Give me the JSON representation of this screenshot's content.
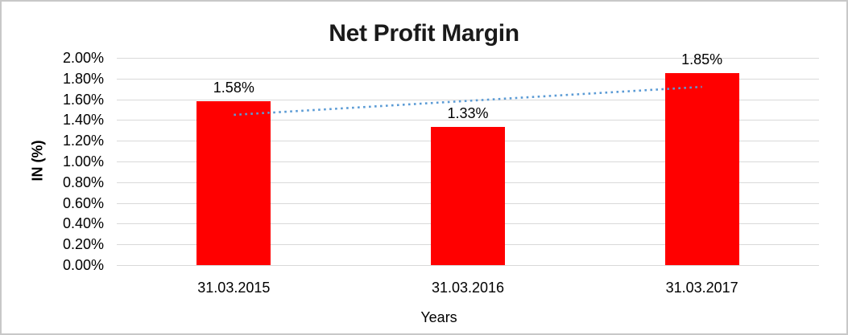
{
  "frame": {
    "border_color": "#c8c8c8",
    "background_color": "#ffffff"
  },
  "chart_data": {
    "type": "bar",
    "title": "Net Profit Margin",
    "xlabel": "Years",
    "ylabel": "IN (%)",
    "categories": [
      "31.03.2015",
      "31.03.2016",
      "31.03.2017"
    ],
    "values": [
      1.58,
      1.33,
      1.85
    ],
    "value_labels": [
      "1.58%",
      "1.33%",
      "1.85%"
    ],
    "ylim": [
      0,
      2.0
    ],
    "ytick_step": 0.2,
    "ytick_labels": [
      "2.00%",
      "1.80%",
      "1.60%",
      "1.40%",
      "1.20%",
      "1.00%",
      "0.80%",
      "0.60%",
      "0.40%",
      "0.20%",
      "0.00%"
    ],
    "grid": true,
    "gridline_color": "#d9d9d9",
    "bar_color": "#ff0000",
    "text_color": "#000000",
    "title_color": "#1a1a1a",
    "legend": "none",
    "trendline": {
      "type": "linear",
      "style": "dotted",
      "color": "#5b9bd5",
      "start_value": 1.45,
      "end_value": 1.72
    }
  }
}
